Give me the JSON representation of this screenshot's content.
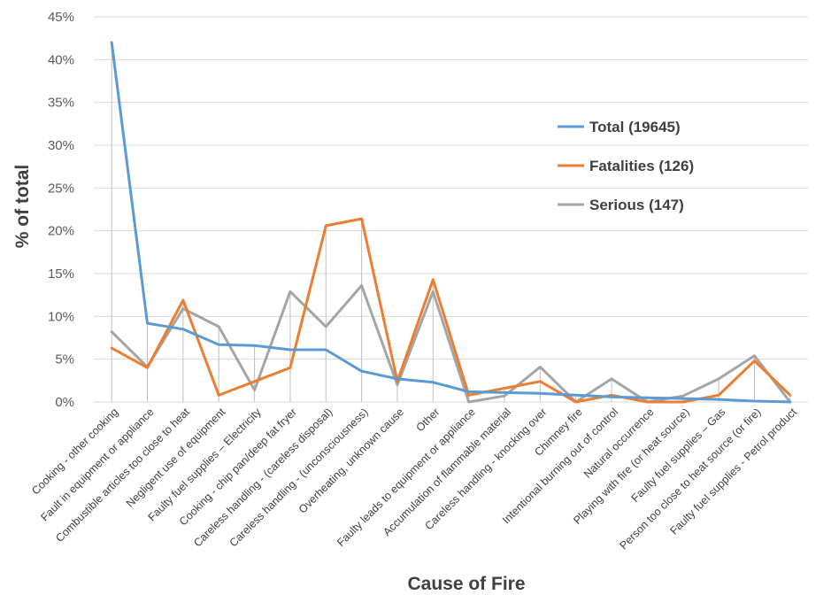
{
  "chart_data": {
    "type": "line",
    "xlabel": "Cause of Fire",
    "ylabel": "% of total",
    "ylim": [
      0,
      45
    ],
    "y_ticks": [
      "0%",
      "5%",
      "10%",
      "15%",
      "20%",
      "25%",
      "30%",
      "35%",
      "40%",
      "45%"
    ],
    "y_tick_values": [
      0,
      5,
      10,
      15,
      20,
      25,
      30,
      35,
      40,
      45
    ],
    "grid": "horizontal",
    "drop_lines": true,
    "legend_position": "right",
    "categories": [
      "Cooking - other cooking",
      "Fault in equipment or appliance",
      "Combustible articles too close to heat",
      "Negligent use of equipment",
      "Faulty fuel supplies – Electricity",
      "Cooking - chip pan/deep fat fryer",
      "Careless handling  - (careless disposal)",
      "Careless handling - (unconsciousness)",
      "Overheating, unknown cause",
      "Other",
      "Faulty leads to equipment or appliance",
      "Accumulation of flammable material",
      "Careless handling - knocking over",
      "Chimney fire",
      "Intentional burning out of control",
      "Natural occurrence",
      "Playing with fire (or heat source)",
      "Faulty fuel supplies – Gas",
      "Person too close to heat source (or fire)",
      "Faulty fuel supplies - Petrol product"
    ],
    "series": [
      {
        "name": "Total (19645)",
        "color": "#5B9BD5",
        "values": [
          42.0,
          9.2,
          8.5,
          6.7,
          6.6,
          6.1,
          6.1,
          3.6,
          2.7,
          2.3,
          1.2,
          1.1,
          1.0,
          0.8,
          0.6,
          0.5,
          0.4,
          0.3,
          0.1,
          0.0
        ]
      },
      {
        "name": "Fatalities (126)",
        "color": "#ED7D31",
        "values": [
          6.3,
          4.0,
          11.9,
          0.8,
          2.4,
          4.0,
          20.6,
          21.4,
          2.4,
          14.3,
          0.8,
          1.6,
          2.4,
          0.0,
          0.8,
          0.0,
          0.0,
          0.8,
          4.8,
          0.8
        ]
      },
      {
        "name": "Serious (147)",
        "color": "#A5A5A5",
        "values": [
          8.2,
          4.1,
          10.9,
          8.8,
          1.4,
          12.9,
          8.8,
          13.6,
          2.0,
          12.9,
          0.0,
          0.7,
          4.1,
          0.0,
          2.7,
          0.0,
          0.7,
          2.7,
          5.4,
          0.0
        ]
      }
    ]
  }
}
